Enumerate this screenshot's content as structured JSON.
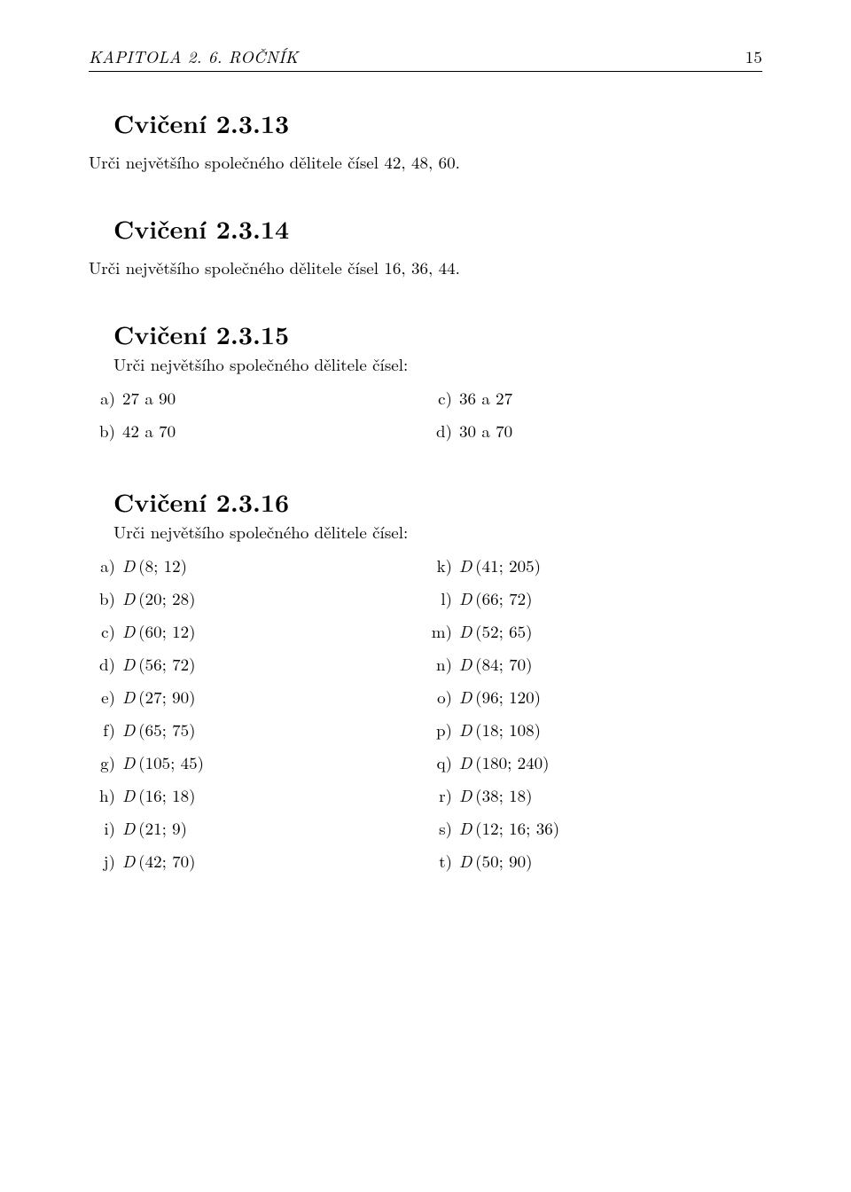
{
  "header": {
    "chapter": "KAPITOLA 2.  6. ROČNÍK",
    "page_number": "15"
  },
  "ex1": {
    "title": "Cvičení 2.3.13",
    "text": "Urči největšího společného dělitele čísel 42, 48, 60."
  },
  "ex2": {
    "title": "Cvičení 2.3.14",
    "text": "Urči největšího společného dělitele čísel 16, 36, 44."
  },
  "ex3": {
    "title": "Cvičení 2.3.15",
    "intro": "Urči největšího společného dělitele čísel:",
    "left": [
      {
        "m": "a)",
        "t": "27 a 90"
      },
      {
        "m": "b)",
        "t": "42 a 70"
      }
    ],
    "right": [
      {
        "m": "c)",
        "t": "36 a 27"
      },
      {
        "m": "d)",
        "t": "30 a 70"
      }
    ]
  },
  "ex4": {
    "title": "Cvičení 2.3.16",
    "intro": "Urči největšího společného dělitele čísel:",
    "left": [
      {
        "m": "a)",
        "d": "D",
        "args": "(8; 12)"
      },
      {
        "m": "b)",
        "d": "D",
        "args": "(20; 28)"
      },
      {
        "m": "c)",
        "d": "D",
        "args": "(60; 12)"
      },
      {
        "m": "d)",
        "d": "D",
        "args": "(56; 72)"
      },
      {
        "m": "e)",
        "d": "D",
        "args": "(27; 90)"
      },
      {
        "m": "f)",
        "d": "D",
        "args": "(65; 75)"
      },
      {
        "m": "g)",
        "d": "D",
        "args": "(105; 45)"
      },
      {
        "m": "h)",
        "d": "D",
        "args": "(16; 18)"
      },
      {
        "m": "i)",
        "d": "D",
        "args": "(21; 9)"
      },
      {
        "m": "j)",
        "d": "D",
        "args": "(42; 70)"
      }
    ],
    "right": [
      {
        "m": "k)",
        "d": "D",
        "args": "(41; 205)"
      },
      {
        "m": "l)",
        "d": "D",
        "args": "(66; 72)"
      },
      {
        "m": "m)",
        "d": "D",
        "args": "(52; 65)"
      },
      {
        "m": "n)",
        "d": "D",
        "args": "(84; 70)"
      },
      {
        "m": "o)",
        "d": "D",
        "args": "(96; 120)"
      },
      {
        "m": "p)",
        "d": "D",
        "args": "(18; 108)"
      },
      {
        "m": "q)",
        "d": "D",
        "args": "(180; 240)"
      },
      {
        "m": "r)",
        "d": "D",
        "args": "(38; 18)"
      },
      {
        "m": "s)",
        "d": "D",
        "args": "(12; 16; 36)"
      },
      {
        "m": "t)",
        "d": "D",
        "args": "(50; 90)"
      }
    ]
  }
}
